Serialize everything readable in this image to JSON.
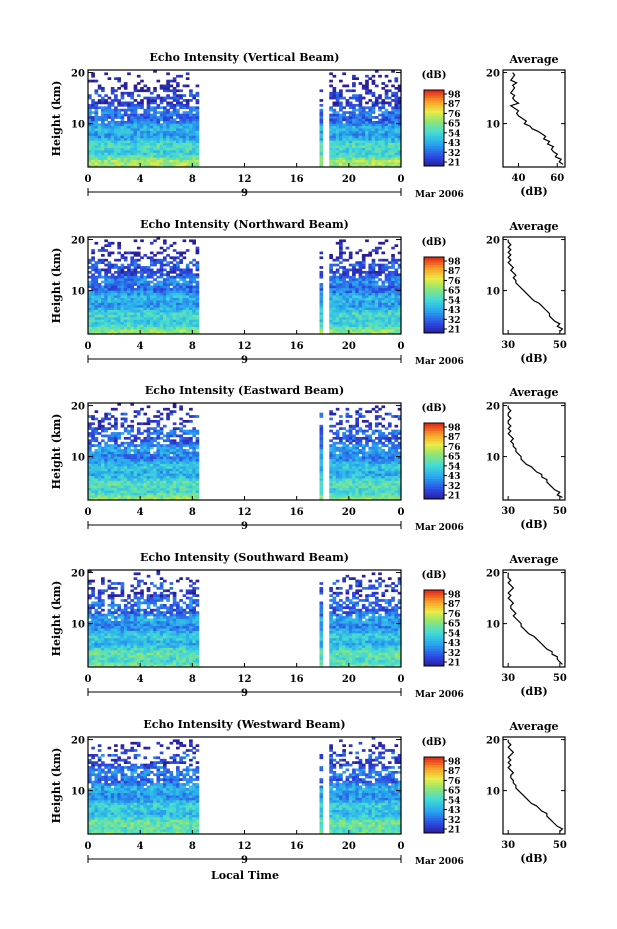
{
  "figure": {
    "time_axis_label": "Local Time",
    "colorbar_unit": "(dB)",
    "average_title": "Average",
    "average_xlabel": "(dB)"
  },
  "chart_data": [
    {
      "type": "heatmap",
      "title": "Echo Intensity (Vertical Beam)",
      "ylabel": "Height (km)",
      "xlabel": "",
      "x_ticks": [
        "0",
        "4",
        "8",
        "12",
        "16",
        "20",
        "0"
      ],
      "x_range": [
        0,
        24
      ],
      "y_ticks": [
        "10",
        "20"
      ],
      "y_range": [
        1.5,
        20.5
      ],
      "date_tick": "9",
      "date_label": "Mar 2006",
      "data_gap_hours": [
        [
          8.6,
          17.8
        ],
        [
          18.1,
          18.5
        ]
      ],
      "colorbar": {
        "label": "(dB)",
        "ticks": [
          "98",
          "87",
          "76",
          "65",
          "54",
          "43",
          "32",
          "21"
        ],
        "range": [
          21,
          98
        ]
      },
      "profile_low": 70,
      "profile_high": 20,
      "noise_top_km": 18.5,
      "average": {
        "title": "Average",
        "xlabel": "(dB)",
        "x_ticks": [
          "40",
          "60"
        ],
        "x_range": [
          32,
          64
        ],
        "y_ticks": [
          "10",
          "20"
        ],
        "y_range": [
          1.5,
          20.5
        ],
        "height_km": [
          2,
          2.5,
          3,
          3.5,
          4,
          4.5,
          5,
          5.5,
          6,
          6.5,
          7,
          7.5,
          8,
          8.5,
          9,
          9.5,
          10,
          10.5,
          11,
          11.5,
          12,
          12.5,
          13,
          13.5,
          14,
          14.5,
          15,
          15.5,
          16,
          16.5,
          17,
          17.5,
          18,
          18.5,
          19,
          19.5,
          20
        ],
        "values_db": [
          63,
          61,
          62,
          59,
          60,
          58,
          57,
          58,
          55,
          56,
          53,
          54,
          52,
          50,
          47,
          46,
          43,
          44,
          42,
          40,
          39,
          40,
          38,
          36,
          40,
          38,
          37,
          38,
          36,
          37,
          38,
          37,
          39,
          36,
          37,
          38,
          37
        ]
      }
    },
    {
      "type": "heatmap",
      "title": "Echo Intensity (Northward Beam)",
      "ylabel": "Height (km)",
      "xlabel": "",
      "x_ticks": [
        "0",
        "4",
        "8",
        "12",
        "16",
        "20",
        "0"
      ],
      "x_range": [
        0,
        24
      ],
      "y_ticks": [
        "10",
        "20"
      ],
      "y_range": [
        1.5,
        20.5
      ],
      "date_tick": "9",
      "date_label": "Mar 2006",
      "data_gap_hours": [
        [
          8.6,
          17.8
        ],
        [
          18.1,
          18.5
        ]
      ],
      "colorbar": {
        "label": "(dB)",
        "ticks": [
          "98",
          "87",
          "76",
          "65",
          "54",
          "43",
          "32",
          "21"
        ],
        "range": [
          21,
          98
        ]
      },
      "profile_low": 65,
      "profile_high": 24,
      "noise_top_km": 18.0,
      "average": {
        "title": "Average",
        "xlabel": "(dB)",
        "x_ticks": [
          "30",
          "50"
        ],
        "x_range": [
          28,
          52
        ],
        "y_ticks": [
          "10",
          "20"
        ],
        "y_range": [
          1.5,
          20.5
        ],
        "height_km": [
          2,
          2.5,
          3,
          3.5,
          4,
          4.5,
          5,
          5.5,
          6,
          6.5,
          7,
          7.5,
          8,
          8.5,
          9,
          9.5,
          10,
          10.5,
          11,
          11.5,
          12,
          12.5,
          13,
          13.5,
          14,
          14.5,
          15,
          15.5,
          16,
          16.5,
          17,
          17.5,
          18,
          18.5,
          19,
          19.5,
          20
        ],
        "values_db": [
          50,
          51,
          49,
          50,
          48,
          47,
          46,
          46,
          45,
          44,
          43,
          42,
          40,
          39,
          38,
          37,
          36,
          35,
          34,
          33,
          33,
          32,
          33,
          32,
          31,
          32,
          31,
          30,
          31,
          30,
          31,
          30,
          31,
          30,
          31,
          30,
          30
        ]
      }
    },
    {
      "type": "heatmap",
      "title": "Echo Intensity (Eastward Beam)",
      "ylabel": "Height (km)",
      "xlabel": "",
      "x_ticks": [
        "0",
        "4",
        "8",
        "12",
        "16",
        "20",
        "0"
      ],
      "x_range": [
        0,
        24
      ],
      "y_ticks": [
        "10",
        "20"
      ],
      "y_range": [
        1.5,
        20.5
      ],
      "date_tick": "9",
      "date_label": "Mar 2006",
      "data_gap_hours": [
        [
          8.6,
          17.8
        ],
        [
          18.1,
          18.5
        ]
      ],
      "colorbar": {
        "label": "(dB)",
        "ticks": [
          "98",
          "87",
          "76",
          "65",
          "54",
          "43",
          "32",
          "21"
        ],
        "range": [
          21,
          98
        ]
      },
      "profile_low": 66,
      "profile_high": 24,
      "noise_top_km": 19.5,
      "average": {
        "title": "Average",
        "xlabel": "(dB)",
        "x_ticks": [
          "30",
          "50"
        ],
        "x_range": [
          28,
          52
        ],
        "y_ticks": [
          "10",
          "20"
        ],
        "y_range": [
          1.5,
          20.5
        ],
        "height_km": [
          2,
          2.5,
          3,
          3.5,
          4,
          4.5,
          5,
          5.5,
          6,
          6.5,
          7,
          7.5,
          8,
          8.5,
          9,
          9.5,
          10,
          10.5,
          11,
          11.5,
          12,
          12.5,
          13,
          13.5,
          14,
          14.5,
          15,
          15.5,
          16,
          16.5,
          17,
          17.5,
          18,
          18.5,
          19,
          19.5,
          20
        ],
        "values_db": [
          51,
          49,
          50,
          48,
          47,
          46,
          45,
          45,
          43,
          43,
          41,
          40,
          39,
          37,
          36,
          35,
          35,
          34,
          33,
          33,
          32,
          32,
          31,
          32,
          31,
          30,
          31,
          30,
          31,
          30,
          30,
          31,
          30,
          30,
          31,
          30,
          30
        ]
      }
    },
    {
      "type": "heatmap",
      "title": "Echo Intensity (Southward Beam)",
      "ylabel": "Height (km)",
      "xlabel": "",
      "x_ticks": [
        "0",
        "4",
        "8",
        "12",
        "16",
        "20",
        "0"
      ],
      "x_range": [
        0,
        24
      ],
      "y_ticks": [
        "10",
        "20"
      ],
      "y_range": [
        1.5,
        20.5
      ],
      "date_tick": "9",
      "date_label": "Mar 2006",
      "data_gap_hours": [
        [
          8.6,
          17.8
        ],
        [
          18.1,
          18.5
        ]
      ],
      "colorbar": {
        "label": "(dB)",
        "ticks": [
          "98",
          "87",
          "76",
          "65",
          "54",
          "43",
          "32",
          "21"
        ],
        "range": [
          21,
          98
        ]
      },
      "profile_low": 66,
      "profile_high": 24,
      "noise_top_km": 19.5,
      "average": {
        "title": "Average",
        "xlabel": "(dB)",
        "x_ticks": [
          "30",
          "50"
        ],
        "x_range": [
          28,
          52
        ],
        "y_ticks": [
          "10",
          "20"
        ],
        "y_range": [
          1.5,
          20.5
        ],
        "height_km": [
          2,
          2.5,
          3,
          3.5,
          4,
          4.5,
          5,
          5.5,
          6,
          6.5,
          7,
          7.5,
          8,
          8.5,
          9,
          9.5,
          10,
          10.5,
          11,
          11.5,
          12,
          12.5,
          13,
          13.5,
          14,
          14.5,
          15,
          15.5,
          16,
          16.5,
          17,
          17.5,
          18,
          18.5,
          19,
          19.5,
          20
        ],
        "values_db": [
          51,
          50,
          49,
          49,
          47,
          47,
          45,
          44,
          43,
          42,
          41,
          40,
          38,
          37,
          36,
          35,
          35,
          34,
          33,
          32,
          33,
          32,
          31,
          31,
          32,
          31,
          30,
          31,
          30,
          31,
          32,
          31,
          30,
          31,
          30,
          30,
          30
        ]
      }
    },
    {
      "type": "heatmap",
      "title": "Echo Intensity (Westward Beam)",
      "ylabel": "Height (km)",
      "xlabel": "",
      "x_ticks": [
        "0",
        "4",
        "8",
        "12",
        "16",
        "20",
        "0"
      ],
      "x_range": [
        0,
        24
      ],
      "y_ticks": [
        "10",
        "20"
      ],
      "y_range": [
        1.5,
        20.5
      ],
      "date_tick": "9",
      "date_label": "Mar 2006",
      "data_gap_hours": [
        [
          8.6,
          17.8
        ],
        [
          18.1,
          18.5
        ]
      ],
      "colorbar": {
        "label": "(dB)",
        "ticks": [
          "98",
          "87",
          "76",
          "65",
          "54",
          "43",
          "32",
          "21"
        ],
        "range": [
          21,
          98
        ]
      },
      "profile_low": 66,
      "profile_high": 24,
      "noise_top_km": 19.5,
      "average": {
        "title": "Average",
        "xlabel": "(dB)",
        "x_ticks": [
          "30",
          "50"
        ],
        "x_range": [
          28,
          52
        ],
        "y_ticks": [
          "10",
          "20"
        ],
        "y_range": [
          1.5,
          20.5
        ],
        "height_km": [
          2,
          2.5,
          3,
          3.5,
          4,
          4.5,
          5,
          5.5,
          6,
          6.5,
          7,
          7.5,
          8,
          8.5,
          9,
          9.5,
          10,
          10.5,
          11,
          11.5,
          12,
          12.5,
          13,
          13.5,
          14,
          14.5,
          15,
          15.5,
          16,
          16.5,
          17,
          17.5,
          18,
          18.5,
          19,
          19.5,
          20
        ],
        "values_db": [
          50,
          51,
          49,
          48,
          47,
          46,
          45,
          45,
          43,
          42,
          41,
          39,
          38,
          37,
          36,
          35,
          34,
          33,
          33,
          32,
          32,
          31,
          31,
          32,
          31,
          30,
          31,
          30,
          31,
          30,
          31,
          32,
          31,
          30,
          31,
          30,
          30
        ]
      }
    }
  ]
}
